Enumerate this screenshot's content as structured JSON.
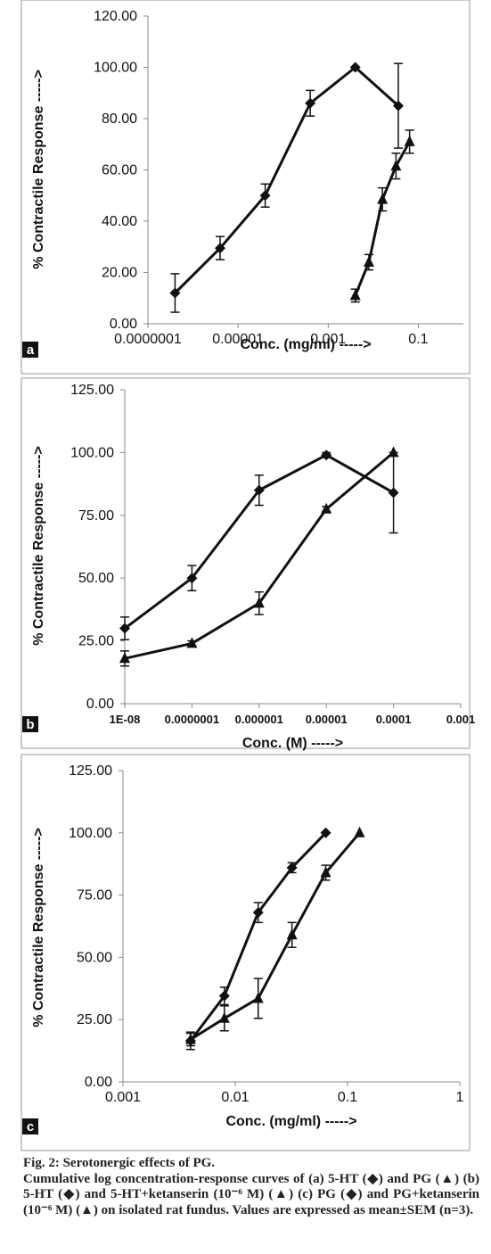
{
  "chart_data": [
    {
      "type": "line",
      "panel_label": "a",
      "x_scale": "log",
      "xlabel": "Conc. (mg/ml) ----->",
      "ylabel": "% Contractile Response ----->",
      "ylim": [
        0,
        120
      ],
      "yticks": [
        "0.00",
        "20.00",
        "40.00",
        "60.00",
        "80.00",
        "100.00",
        "120.00"
      ],
      "yticks_values": [
        0,
        20,
        40,
        60,
        80,
        100,
        120
      ],
      "xticks": [
        "0.0000001",
        "0.00001",
        "0.001",
        "0.1"
      ],
      "xticks_values": [
        1e-07,
        1e-05,
        0.001,
        0.1
      ],
      "xlim": [
        1e-07,
        1
      ],
      "grid": false,
      "legend": "none",
      "series": [
        {
          "marker": "diamond",
          "x": [
            4e-07,
            4e-06,
            4e-05,
            0.0004,
            0.004,
            0.036
          ],
          "y": [
            12,
            29.5,
            50,
            86,
            100,
            85
          ],
          "err": [
            7.5,
            4.5,
            4.5,
            5,
            0,
            16.5
          ]
        },
        {
          "marker": "triangle",
          "x": [
            0.004,
            0.008,
            0.016,
            0.032,
            0.064
          ],
          "y": [
            11,
            24,
            48.5,
            61.5,
            71
          ],
          "err": [
            2.5,
            3,
            4.5,
            5,
            4.5
          ]
        }
      ]
    },
    {
      "type": "line",
      "panel_label": "b",
      "x_scale": "log",
      "xlabel": "Conc. (M) ----->",
      "ylabel": "% Contractile Response ----->",
      "ylim": [
        0,
        125
      ],
      "yticks": [
        "0.00",
        "25.00",
        "50.00",
        "75.00",
        "100.00",
        "125.00"
      ],
      "yticks_values": [
        0,
        25,
        50,
        75,
        100,
        125
      ],
      "xticks": [
        "1E-08",
        "0.0000001",
        "0.000001",
        "0.00001",
        "0.0001",
        "0.001"
      ],
      "xticks_values": [
        1e-08,
        1e-07,
        1e-06,
        1e-05,
        0.0001,
        0.001
      ],
      "xlim": [
        1e-08,
        0.001
      ],
      "grid": false,
      "legend": "none",
      "series": [
        {
          "marker": "diamond",
          "x": [
            1e-08,
            1e-07,
            1e-06,
            1e-05,
            0.0001
          ],
          "y": [
            30,
            50,
            85,
            99,
            84
          ],
          "err": [
            4.5,
            5,
            6,
            1,
            16
          ]
        },
        {
          "marker": "triangle",
          "x": [
            1e-08,
            1e-07,
            1e-06,
            1e-05,
            0.0001
          ],
          "y": [
            18,
            24,
            40,
            77.5,
            100
          ],
          "err": [
            3,
            1,
            4.5,
            1,
            0
          ]
        }
      ]
    },
    {
      "type": "line",
      "panel_label": "c",
      "x_scale": "log",
      "xlabel": "Conc. (mg/ml) ----->",
      "ylabel": "% Contractile Response ----->",
      "ylim": [
        0,
        125
      ],
      "yticks": [
        "0.00",
        "25.00",
        "50.00",
        "75.00",
        "100.00",
        "125.00"
      ],
      "yticks_values": [
        0,
        25,
        50,
        75,
        100,
        125
      ],
      "xticks": [
        "0.001",
        "0.01",
        "0.1",
        "1"
      ],
      "xticks_values": [
        0.001,
        0.01,
        0.1,
        1
      ],
      "xlim": [
        0.001,
        1
      ],
      "grid": false,
      "legend": "none",
      "series": [
        {
          "marker": "diamond",
          "x": [
            0.004,
            0.008,
            0.016,
            0.032,
            0.064
          ],
          "y": [
            16.5,
            34.5,
            68,
            86,
            100
          ],
          "err": [
            3.5,
            3.5,
            4,
            2,
            0
          ]
        },
        {
          "marker": "triangle",
          "x": [
            0.004,
            0.008,
            0.016,
            0.032,
            0.064,
            0.128
          ],
          "y": [
            17,
            25.5,
            33.5,
            59,
            84,
            100
          ],
          "err": [
            2.5,
            5,
            8,
            5,
            3,
            0
          ]
        }
      ]
    }
  ],
  "caption": {
    "title": "Fig. 2: Serotonergic effects of PG.",
    "text": "Cumulative log concentration-response curves of (a) 5-HT (◆) and PG (▲) (b) 5-HT (◆) and 5-HT+ketanserin (10⁻⁶ M) (▲) (c) PG (◆) and PG+ketanserin (10⁻⁶ M) (▲) on isolated rat fundus. Values are expressed as mean±SEM (n=3)."
  }
}
